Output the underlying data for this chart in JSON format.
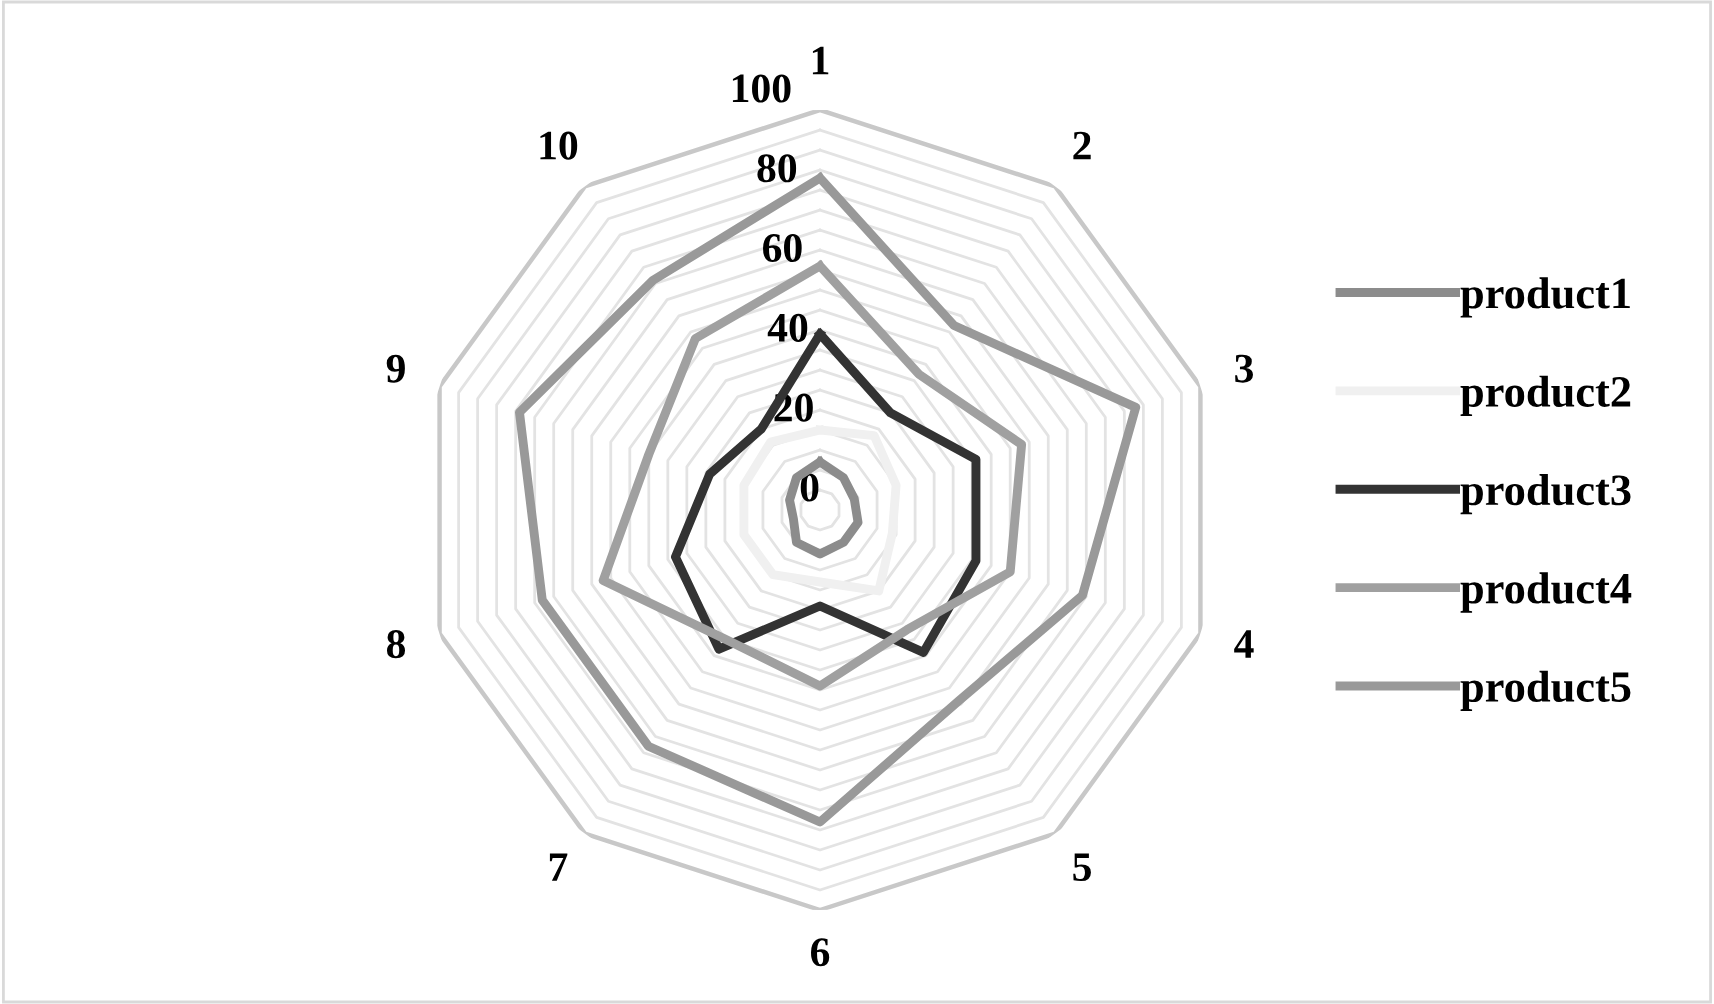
{
  "chart_data": {
    "type": "radar",
    "categories": [
      "1",
      "2",
      "3",
      "4",
      "5",
      "6",
      "7",
      "8",
      "9",
      "10"
    ],
    "ylim": [
      0,
      100
    ],
    "yticks": [
      0,
      20,
      40,
      60,
      80,
      100
    ],
    "grid": true,
    "legend": "right",
    "line_style": "solid",
    "marker": "none",
    "series": [
      {
        "name": "product1",
        "color": "#8c8c8c",
        "values": [
          12,
          10,
          9,
          10,
          10,
          11,
          10,
          7,
          8,
          10
        ]
      },
      {
        "name": "product2",
        "color": "#f0f0f0",
        "values": [
          20,
          23,
          20,
          19,
          25,
          18,
          20,
          20,
          20,
          21
        ]
      },
      {
        "name": "product3",
        "color": "#333333",
        "values": [
          44,
          30,
          41,
          41,
          44,
          24,
          43,
          38,
          29,
          25
        ]
      },
      {
        "name": "product4",
        "color": "#a0a0a0",
        "values": [
          61,
          42,
          53,
          50,
          37,
          44,
          40,
          57,
          45,
          53
        ]
      },
      {
        "name": "product5",
        "color": "#999999",
        "values": [
          83,
          57,
          83,
          69,
          59,
          78,
          73,
          73,
          79,
          71
        ]
      }
    ]
  }
}
